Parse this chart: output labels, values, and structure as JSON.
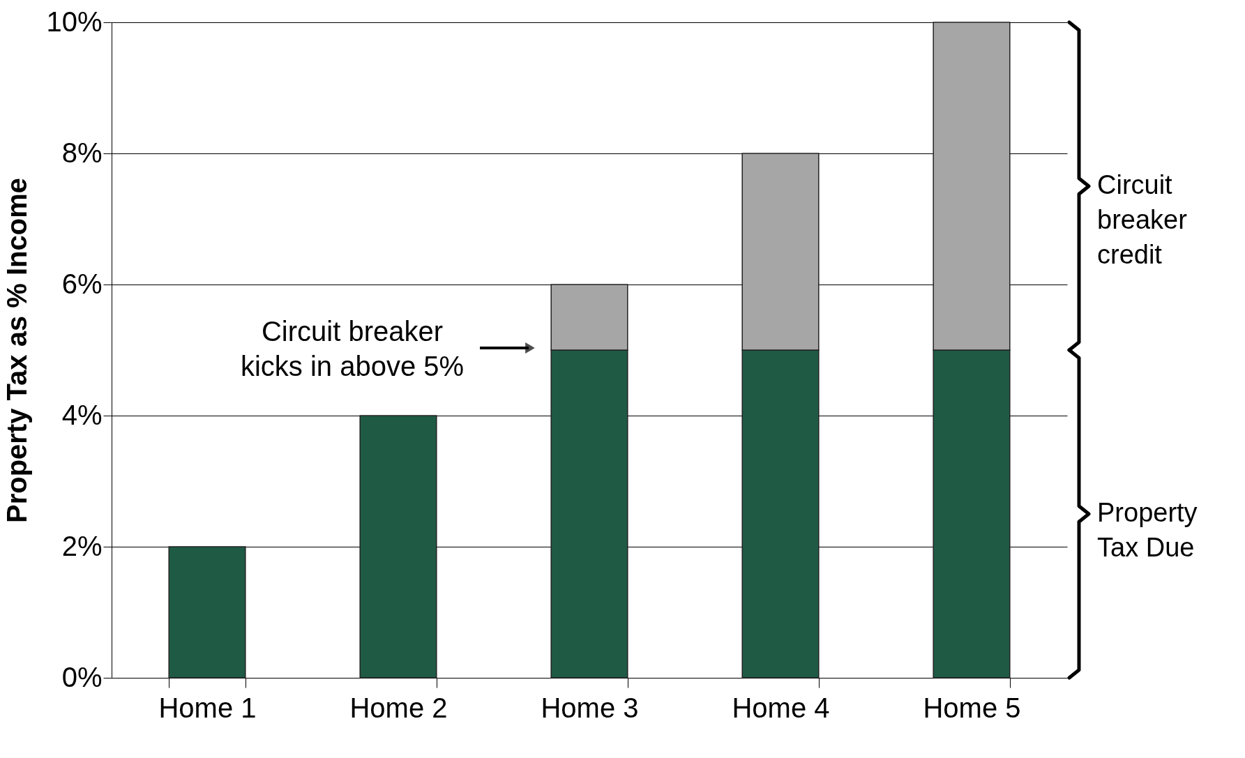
{
  "chart_data": {
    "type": "bar",
    "stacked": true,
    "categories": [
      "Home 1",
      "Home 2",
      "Home 3",
      "Home 4",
      "Home 5"
    ],
    "series": [
      {
        "name": "Property\nTax Due",
        "color": "#1f5a45",
        "values": [
          2,
          4,
          5,
          5,
          5
        ]
      },
      {
        "name": "Circuit\nbreaker\ncredit",
        "color": "#a6a6a6",
        "values": [
          null,
          null,
          1,
          3,
          5
        ]
      }
    ],
    "ylabel": "Property Tax as % Income",
    "ylim": [
      0,
      10
    ],
    "yticks": [
      {
        "value": 0,
        "label": "0%"
      },
      {
        "value": 2,
        "label": "2%"
      },
      {
        "value": 4,
        "label": "4%"
      },
      {
        "value": 6,
        "label": "6%"
      },
      {
        "value": 8,
        "label": "8%"
      },
      {
        "value": 10,
        "label": "10%"
      }
    ],
    "annotations": [
      "Circuit breaker\nkicks in above 5%"
    ],
    "grid": "y",
    "legend": false
  }
}
